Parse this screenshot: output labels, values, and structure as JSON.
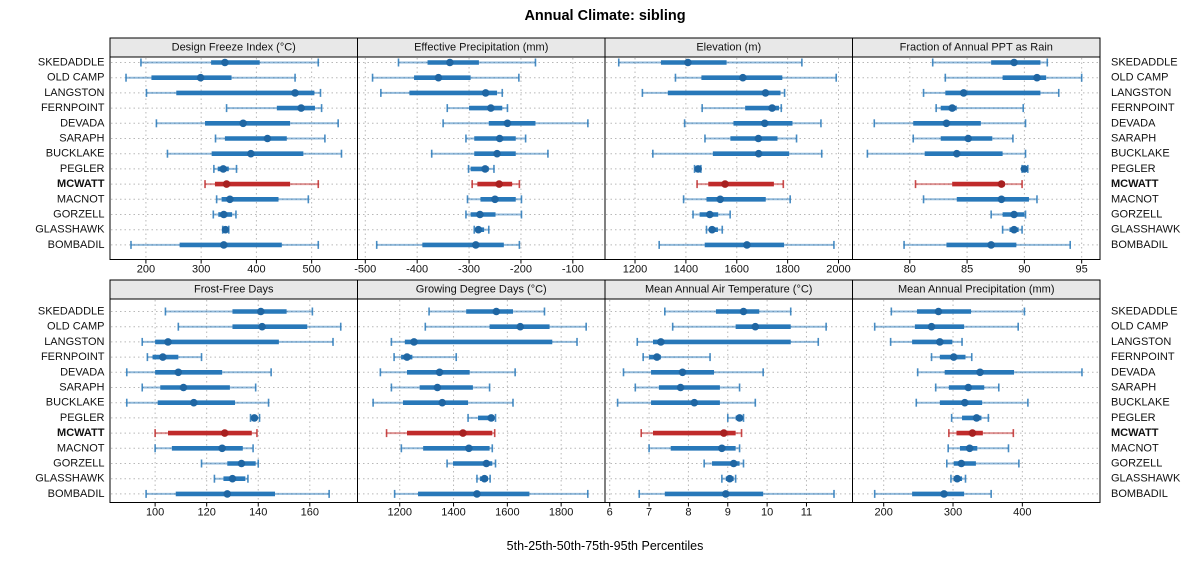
{
  "chart_data": {
    "type": "scatter",
    "variant": "five-number-percentile-interval-dotplot",
    "title": "Annual Climate: sibling",
    "xlabel": "5th-25th-50th-75th-95th Percentiles",
    "percentile_order": [
      "p5",
      "p25",
      "p50",
      "p75",
      "p95"
    ],
    "legend_position": "none",
    "grid": true,
    "stations": [
      "SKEDADDLE",
      "OLD CAMP",
      "LANGSTON",
      "FERNPOINT",
      "DEVADA",
      "SARAPH",
      "BUCKLAKE",
      "PEGLER",
      "MCWATT",
      "MACNOT",
      "GORZELL",
      "GLASSHAWK",
      "BOMBADIL"
    ],
    "highlight_station": "MCWATT",
    "colors": {
      "series_blue": "#2878b9",
      "series_blue_dot": "#1f66a3",
      "highlight_red": "#c02b2b",
      "highlight_red_dot": "#a82020",
      "gridline": "#b8b8b8",
      "strip_bg": "#e8e8e8",
      "panel_border": "#000000",
      "text": "#111111"
    },
    "panels": [
      {
        "slug": "design-freeze-index",
        "title": "Design Freeze Index (°C)",
        "row": 0,
        "col": 0,
        "xlim": [
          135,
          583
        ],
        "xticks": [
          200,
          300,
          400,
          500
        ],
        "values": {
          "SKEDADDLE": [
            191,
            318,
            343,
            406,
            512
          ],
          "OLD CAMP": [
            164,
            210,
            299,
            355,
            470
          ],
          "LANGSTON": [
            201,
            255,
            470,
            505,
            516
          ],
          "FERNPOINT": [
            346,
            437,
            481,
            506,
            518
          ],
          "DEVADA": [
            219,
            307,
            376,
            461,
            548
          ],
          "SARAPH": [
            326,
            343,
            420,
            455,
            524
          ],
          "BUCKLAKE": [
            239,
            319,
            390,
            485,
            554
          ],
          "PEGLER": [
            323,
            330,
            340,
            350,
            364
          ],
          "MCWATT": [
            307,
            325,
            346,
            461,
            512
          ],
          "MACNOT": [
            328,
            337,
            352,
            440,
            494
          ],
          "GORZELL": [
            322,
            331,
            341,
            356,
            363
          ],
          "GLASSHAWK": [
            339,
            342,
            344,
            347,
            350
          ],
          "BOMBADIL": [
            173,
            261,
            341,
            446,
            512
          ]
        }
      },
      {
        "slug": "effective-precipitation",
        "title": "Effective Precipitation (mm)",
        "row": 0,
        "col": 1,
        "xlim": [
          -515,
          -38
        ],
        "xticks": [
          -500,
          -400,
          -300,
          -200,
          -100
        ],
        "values": {
          "SKEDADDLE": [
            -436,
            -380,
            -337,
            -281,
            -172
          ],
          "OLD CAMP": [
            -486,
            -406,
            -359,
            -297,
            -204
          ],
          "LANGSTON": [
            -470,
            -415,
            -268,
            -246,
            -236
          ],
          "FERNPOINT": [
            -342,
            -300,
            -258,
            -236,
            -226
          ],
          "DEVADA": [
            -350,
            -262,
            -226,
            -172,
            -71
          ],
          "SARAPH": [
            -306,
            -290,
            -241,
            -210,
            -191
          ],
          "BUCKLAKE": [
            -372,
            -290,
            -246,
            -210,
            -148
          ],
          "PEGLER": [
            -301,
            -297,
            -269,
            -262,
            -252
          ],
          "MCWATT": [
            -294,
            -284,
            -242,
            -217,
            -203
          ],
          "MACNOT": [
            -303,
            -278,
            -250,
            -210,
            -199
          ],
          "GORZELL": [
            -306,
            -297,
            -279,
            -249,
            -199
          ],
          "GLASSHAWK": [
            -290,
            -286,
            -282,
            -271,
            -262
          ],
          "BOMBADIL": [
            -478,
            -390,
            -287,
            -233,
            -203
          ]
        }
      },
      {
        "slug": "elevation",
        "title": "Elevation (m)",
        "row": 0,
        "col": 2,
        "xlim": [
          1082,
          2055
        ],
        "xticks": [
          1200,
          1400,
          1600,
          1800,
          2000
        ],
        "values": {
          "SKEDADDLE": [
            1136,
            1302,
            1408,
            1560,
            1856
          ],
          "OLD CAMP": [
            1359,
            1461,
            1624,
            1779,
            1991
          ],
          "LANGSTON": [
            1229,
            1329,
            1713,
            1772,
            1788
          ],
          "FERNPOINT": [
            1464,
            1633,
            1739,
            1766,
            1775
          ],
          "DEVADA": [
            1395,
            1587,
            1710,
            1819,
            1931
          ],
          "SARAPH": [
            1475,
            1575,
            1685,
            1760,
            1835
          ],
          "BUCKLAKE": [
            1270,
            1506,
            1686,
            1806,
            1934
          ],
          "PEGLER": [
            1434,
            1441,
            1448,
            1453,
            1459
          ],
          "MCWATT": [
            1444,
            1488,
            1554,
            1746,
            1783
          ],
          "MACNOT": [
            1391,
            1481,
            1535,
            1714,
            1810
          ],
          "GORZELL": [
            1428,
            1454,
            1494,
            1527,
            1574
          ],
          "GLASSHAWK": [
            1481,
            1492,
            1503,
            1526,
            1543
          ],
          "BOMBADIL": [
            1295,
            1474,
            1640,
            1786,
            1982
          ]
        }
      },
      {
        "slug": "fraction-annual-ppt-as-rain",
        "title": "Fraction of Annual PPT as Rain",
        "row": 0,
        "col": 3,
        "xlim": [
          75,
          96.6
        ],
        "xticks": [
          80,
          85,
          90,
          95
        ],
        "values": {
          "SKEDADDLE": [
            82.0,
            87.1,
            89.1,
            91.4,
            92.0
          ],
          "OLD CAMP": [
            83.1,
            88.1,
            91.1,
            91.9,
            95.0
          ],
          "LANGSTON": [
            81.2,
            83.1,
            84.7,
            91.4,
            93.0
          ],
          "FERNPOINT": [
            82.3,
            82.7,
            83.7,
            84.1,
            89.9
          ],
          "DEVADA": [
            76.9,
            80.3,
            83.2,
            86.2,
            90.1
          ],
          "SARAPH": [
            80.3,
            82.7,
            85.1,
            87.2,
            89.0
          ],
          "BUCKLAKE": [
            76.3,
            81.3,
            84.1,
            88.1,
            90.1
          ],
          "PEGLER": [
            89.8,
            89.9,
            90.0,
            90.2,
            90.3
          ],
          "MCWATT": [
            80.5,
            83.7,
            88.0,
            88.3,
            89.8
          ],
          "MACNOT": [
            81.2,
            84.1,
            88.0,
            90.4,
            91.1
          ],
          "GORZELL": [
            87.1,
            88.1,
            89.1,
            90.0,
            90.1
          ],
          "GLASSHAWK": [
            88.1,
            88.7,
            89.1,
            89.5,
            89.8
          ],
          "BOMBADIL": [
            79.5,
            83.2,
            87.1,
            89.3,
            94.0
          ]
        }
      },
      {
        "slug": "frost-free-days",
        "title": "Frost-Free Days",
        "row": 1,
        "col": 0,
        "xlim": [
          82.5,
          178.5
        ],
        "xticks": [
          100,
          120,
          140,
          160
        ],
        "values": {
          "SKEDADDLE": [
            104,
            130,
            141,
            151,
            161
          ],
          "OLD CAMP": [
            109,
            130,
            141.5,
            159,
            172
          ],
          "LANGSTON": [
            95,
            100,
            105,
            148,
            169
          ],
          "FERNPOINT": [
            97,
            99,
            103,
            109,
            118
          ],
          "DEVADA": [
            89,
            100,
            109,
            126,
            145
          ],
          "SARAPH": [
            95,
            102,
            111,
            129,
            139
          ],
          "BUCKLAKE": [
            89,
            101,
            115,
            131,
            144
          ],
          "PEGLER": [
            137,
            138,
            138.5,
            139.5,
            140.5
          ],
          "MCWATT": [
            100,
            105,
            127,
            137.5,
            139.5
          ],
          "MACNOT": [
            100,
            106.5,
            126,
            134,
            138
          ],
          "GORZELL": [
            118,
            128,
            133.5,
            139,
            140
          ],
          "GLASSHAWK": [
            123,
            126.5,
            130,
            135,
            136
          ],
          "BOMBADIL": [
            96.5,
            108,
            128,
            146.5,
            167.5
          ]
        }
      },
      {
        "slug": "growing-degree-days",
        "title": "Growing Degree Days (°C)",
        "row": 1,
        "col": 1,
        "xlim": [
          1043,
          1963
        ],
        "xticks": [
          1200,
          1400,
          1600,
          1800
        ],
        "values": {
          "SKEDADDLE": [
            1309,
            1447,
            1559,
            1621,
            1738
          ],
          "OLD CAMP": [
            1295,
            1534,
            1648,
            1757,
            1893
          ],
          "LANGSTON": [
            1169,
            1219,
            1253,
            1767,
            1859
          ],
          "FERNPOINT": [
            1179,
            1205,
            1227,
            1247,
            1410
          ],
          "DEVADA": [
            1128,
            1227,
            1348,
            1460,
            1629
          ],
          "SARAPH": [
            1169,
            1274,
            1340,
            1472,
            1534
          ],
          "BUCKLAKE": [
            1101,
            1212,
            1358,
            1454,
            1621
          ],
          "PEGLER": [
            1454,
            1491,
            1540,
            1550,
            1556
          ],
          "MCWATT": [
            1151,
            1227,
            1435,
            1544,
            1553
          ],
          "MACNOT": [
            1206,
            1287,
            1457,
            1534,
            1544
          ],
          "GORZELL": [
            1376,
            1398,
            1522,
            1544,
            1556
          ],
          "GLASSHAWK": [
            1487,
            1498,
            1515,
            1528,
            1536
          ],
          "BOMBADIL": [
            1181,
            1268,
            1487,
            1682,
            1899
          ]
        }
      },
      {
        "slug": "mean-annual-air-temperature",
        "title": "Mean Annual Air Temperature (°C)",
        "row": 1,
        "col": 2,
        "xlim": [
          5.88,
          12.17
        ],
        "xticks": [
          6,
          7,
          8,
          9,
          10,
          11
        ],
        "values": {
          "SKEDADDLE": [
            7.4,
            8.7,
            9.4,
            9.8,
            10.6
          ],
          "OLD CAMP": [
            7.6,
            9.2,
            9.7,
            10.6,
            11.5
          ],
          "LANGSTON": [
            6.7,
            7.1,
            7.3,
            10.6,
            11.3
          ],
          "FERNPOINT": [
            6.85,
            7.0,
            7.2,
            7.3,
            8.55
          ],
          "DEVADA": [
            6.35,
            7.05,
            7.85,
            8.65,
            9.9
          ],
          "SARAPH": [
            6.65,
            7.25,
            7.8,
            8.8,
            9.3
          ],
          "BUCKLAKE": [
            6.2,
            7.05,
            8.15,
            8.8,
            9.7
          ],
          "PEGLER": [
            9.0,
            9.2,
            9.3,
            9.35,
            9.4
          ],
          "MCWATT": [
            6.8,
            7.1,
            8.9,
            9.2,
            9.35
          ],
          "MACNOT": [
            7.0,
            7.55,
            8.85,
            9.2,
            9.3
          ],
          "GORZELL": [
            8.4,
            8.6,
            9.15,
            9.3,
            9.4
          ],
          "GLASSHAWK": [
            8.85,
            8.95,
            9.05,
            9.15,
            9.2
          ],
          "BOMBADIL": [
            6.75,
            7.4,
            8.95,
            9.9,
            11.7
          ]
        }
      },
      {
        "slug": "mean-annual-precipitation",
        "title": "Mean Annual Precipitation (mm)",
        "row": 1,
        "col": 3,
        "xlim": [
          155,
          512
        ],
        "xticks": [
          200,
          300,
          400
        ],
        "values": {
          "SKEDADDLE": [
            211,
            248,
            279,
            326,
            403
          ],
          "OLD CAMP": [
            187,
            245,
            269,
            316,
            394
          ],
          "LANGSTON": [
            210,
            241,
            281,
            299,
            313
          ],
          "FERNPOINT": [
            269,
            281,
            301,
            318,
            327
          ],
          "DEVADA": [
            249,
            288,
            339,
            388,
            486
          ],
          "SARAPH": [
            275,
            294,
            322,
            345,
            366
          ],
          "BUCKLAKE": [
            247,
            281,
            317,
            342,
            408
          ],
          "PEGLER": [
            298,
            313,
            334,
            341,
            351
          ],
          "MCWATT": [
            294,
            305,
            328,
            343,
            387
          ],
          "MACNOT": [
            293,
            310,
            324,
            335,
            380
          ],
          "GORZELL": [
            291,
            301,
            312,
            333,
            395
          ],
          "GLASSHAWK": [
            297,
            301,
            306,
            313,
            318
          ],
          "BOMBADIL": [
            187,
            241,
            287,
            316,
            355
          ]
        }
      }
    ]
  }
}
